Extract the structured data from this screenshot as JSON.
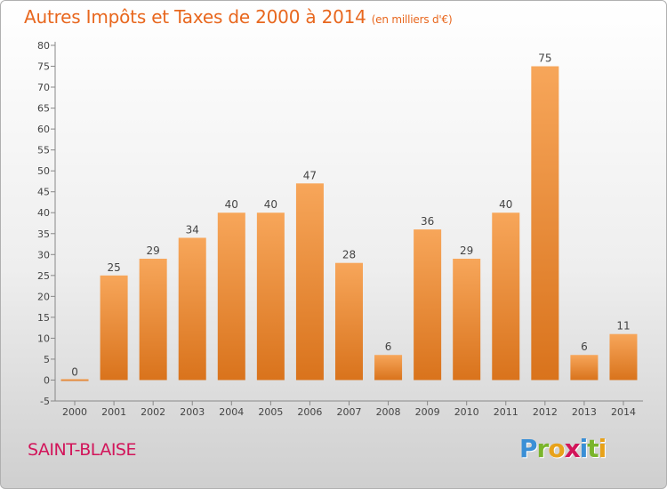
{
  "title": "Autres Impôts et Taxes de 2000 à 2014",
  "unit": "(en milliers d'€)",
  "commune": "SAINT-BLAISE",
  "logo": "Proxiti",
  "colors": {
    "bar_light": "#f7a65a",
    "bar_dark": "#d9731c",
    "title": "#e8671e",
    "commune": "#d2155a"
  },
  "chart_data": {
    "type": "bar",
    "title": "Autres Impôts et Taxes de 2000 à 2014",
    "ylabel": "",
    "xlabel": "",
    "categories": [
      "2000",
      "2001",
      "2002",
      "2003",
      "2004",
      "2005",
      "2006",
      "2007",
      "2008",
      "2009",
      "2010",
      "2011",
      "2012",
      "2013",
      "2014"
    ],
    "values": [
      0,
      25,
      29,
      34,
      40,
      40,
      47,
      28,
      6,
      36,
      29,
      40,
      75,
      6,
      11
    ],
    "ylim": [
      -5,
      80
    ],
    "yticks": [
      -5,
      0,
      5,
      10,
      15,
      20,
      25,
      30,
      35,
      40,
      45,
      50,
      55,
      60,
      65,
      70,
      75,
      80
    ],
    "grid": false,
    "legend": "none"
  }
}
